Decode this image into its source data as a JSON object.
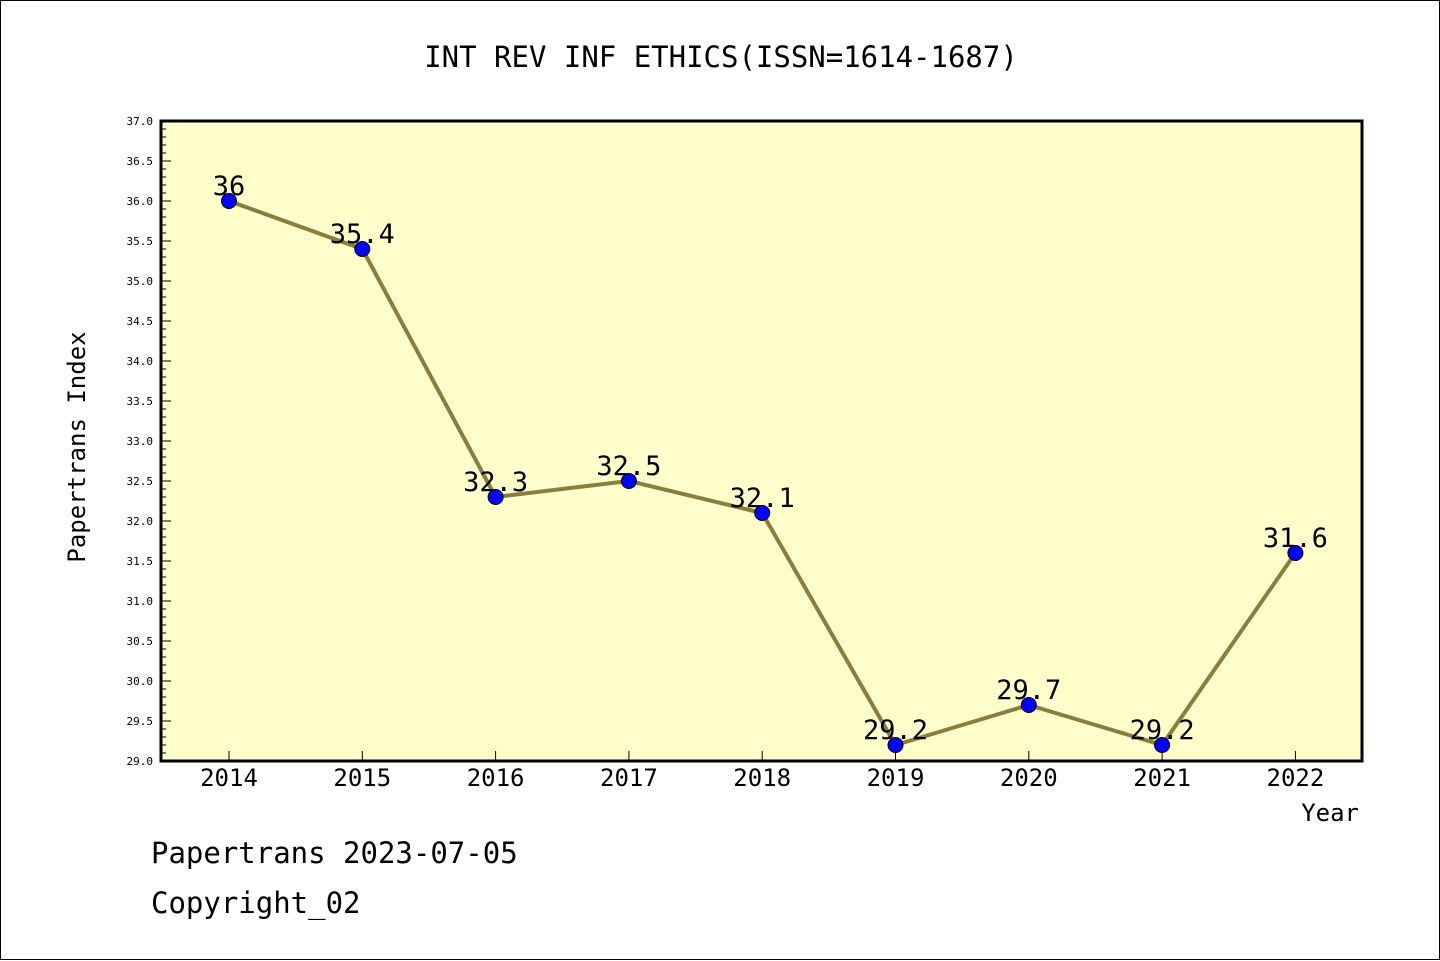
{
  "chart_data": {
    "type": "line",
    "title": "INT REV INF ETHICS(ISSN=1614-1687)",
    "xlabel": "Year",
    "ylabel": "Papertrans Index",
    "categories": [
      "2014",
      "2015",
      "2016",
      "2017",
      "2018",
      "2019",
      "2020",
      "2021",
      "2022"
    ],
    "values": [
      36,
      35.4,
      32.3,
      32.5,
      32.1,
      29.2,
      29.7,
      29.2,
      31.6
    ],
    "data_labels": [
      "36",
      "35.4",
      "32.3",
      "32.5",
      "32.1",
      "29.2",
      "29.7",
      "29.2",
      "31.6"
    ],
    "ylim": [
      29.0,
      37.0
    ],
    "y_ticks": [
      "29.0",
      "29.5",
      "30.0",
      "30.5",
      "31.0",
      "31.5",
      "32.0",
      "32.5",
      "33.0",
      "33.5",
      "34.0",
      "34.5",
      "35.0",
      "35.5",
      "36.0",
      "36.5",
      "37.0"
    ],
    "grid": false,
    "colors": {
      "plot_background": "#ffffcc",
      "line": "#8b7d3a",
      "marker": "#0000ff",
      "axis": "#000000"
    }
  },
  "footer": {
    "line1": "Papertrans 2023-07-05",
    "line2": "Copyright_02"
  }
}
